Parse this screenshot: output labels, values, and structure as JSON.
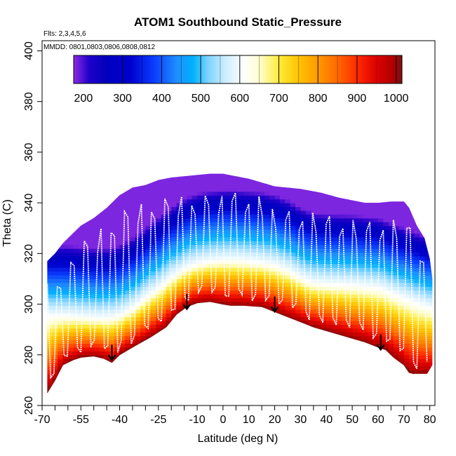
{
  "chart_data": {
    "type": "heatmap",
    "title": "ATOM1 Southbound Static_Pressure",
    "annotations": [
      "Flts: 2,3,4,5,6",
      "MMDD: 0801,0803,0806,0808,0812"
    ],
    "xlabel": "Latitude (deg N)",
    "ylabel": "Theta (C)",
    "xlim": [
      -70,
      82
    ],
    "ylim": [
      260,
      404
    ],
    "x_ticks": [
      -70,
      -55,
      -40,
      -25,
      -10,
      0,
      10,
      20,
      30,
      40,
      50,
      60,
      70,
      80
    ],
    "x_tick_labels": [
      "-70",
      "-55",
      "-40",
      "-25",
      "-10",
      "0",
      "10",
      "20",
      "30",
      "40",
      "50",
      "60",
      "70",
      "80"
    ],
    "y_ticks": [
      260,
      280,
      300,
      320,
      340,
      360,
      380,
      400
    ],
    "y_tick_labels": [
      "260",
      "280",
      "300",
      "320",
      "340",
      "360",
      "380",
      "400"
    ],
    "colorbar": {
      "label_values": [
        200,
        300,
        400,
        500,
        600,
        700,
        800,
        900,
        1000
      ],
      "labels": [
        "200",
        "300",
        "400",
        "500",
        "600",
        "700",
        "800",
        "900",
        "1000"
      ],
      "range": [
        175,
        1015
      ],
      "placement": "top-inside"
    },
    "surface_theta": [
      [
        -68,
        265
      ],
      [
        -65,
        270
      ],
      [
        -62,
        276
      ],
      [
        -58,
        278
      ],
      [
        -55,
        279
      ],
      [
        -50,
        279.5
      ],
      [
        -46,
        278.5
      ],
      [
        -43,
        277
      ],
      [
        -40,
        280
      ],
      [
        -35,
        283
      ],
      [
        -28,
        287
      ],
      [
        -22,
        291
      ],
      [
        -18,
        296
      ],
      [
        -14,
        299
      ],
      [
        -10,
        300.5
      ],
      [
        -5,
        301
      ],
      [
        0,
        300
      ],
      [
        3,
        299.5
      ],
      [
        8,
        299.5
      ],
      [
        15,
        299
      ],
      [
        20,
        297
      ],
      [
        25,
        295
      ],
      [
        30,
        293
      ],
      [
        35,
        291
      ],
      [
        40,
        289.5
      ],
      [
        45,
        288
      ],
      [
        50,
        286.5
      ],
      [
        55,
        285
      ],
      [
        60,
        283
      ],
      [
        63,
        282
      ],
      [
        66,
        279
      ],
      [
        70,
        276
      ],
      [
        72,
        273
      ],
      [
        74,
        272.5
      ]
    ],
    "top_theta": [
      [
        -68,
        317
      ],
      [
        -65,
        320
      ],
      [
        -62,
        324
      ],
      [
        -58,
        328
      ],
      [
        -55,
        331
      ],
      [
        -50,
        334
      ],
      [
        -45,
        338
      ],
      [
        -40,
        343
      ],
      [
        -35,
        346
      ],
      [
        -30,
        347
      ],
      [
        -25,
        349
      ],
      [
        -20,
        350
      ],
      [
        -15,
        350.5
      ],
      [
        -10,
        351
      ],
      [
        -5,
        351.5
      ],
      [
        0,
        351.5
      ],
      [
        5,
        350.5
      ],
      [
        10,
        349.5
      ],
      [
        15,
        348
      ],
      [
        20,
        346.5
      ],
      [
        30,
        345.5
      ],
      [
        38,
        344
      ],
      [
        45,
        342
      ],
      [
        55,
        340
      ],
      [
        60,
        340
      ],
      [
        65,
        340.5
      ],
      [
        70,
        340.5
      ],
      [
        72,
        338
      ],
      [
        75,
        331
      ],
      [
        78,
        326
      ],
      [
        80,
        318
      ]
    ],
    "right_edge": [
      [
        80,
        318
      ],
      [
        81,
        310
      ],
      [
        81,
        276
      ],
      [
        79,
        272.5
      ]
    ],
    "tropopause_theta": [
      [
        -68,
        296
      ],
      [
        -62,
        296
      ],
      [
        -55,
        295.5
      ],
      [
        -50,
        295
      ],
      [
        -45,
        295
      ],
      [
        -40,
        296
      ],
      [
        -35,
        299
      ],
      [
        -30,
        303
      ],
      [
        -25,
        307
      ],
      [
        -20,
        311
      ],
      [
        -15,
        314.5
      ],
      [
        -10,
        316.5
      ],
      [
        -5,
        317.5
      ],
      [
        0,
        318
      ],
      [
        5,
        318
      ],
      [
        10,
        317.5
      ],
      [
        15,
        317
      ],
      [
        20,
        316
      ],
      [
        25,
        314
      ],
      [
        30,
        311
      ],
      [
        35,
        309
      ],
      [
        40,
        308.5
      ],
      [
        50,
        308
      ],
      [
        55,
        307.5
      ],
      [
        60,
        307
      ],
      [
        65,
        305
      ],
      [
        70,
        303
      ],
      [
        75,
        301
      ],
      [
        80,
        299
      ]
    ],
    "arrows": [
      {
        "x": -43,
        "y_from": 284,
        "y_to": 278
      },
      {
        "x": -14,
        "y_from": 304,
        "y_to": 298
      },
      {
        "x": 20,
        "y_from": 303,
        "y_to": 297
      },
      {
        "x": 61,
        "y_from": 288,
        "y_to": 282
      }
    ]
  }
}
